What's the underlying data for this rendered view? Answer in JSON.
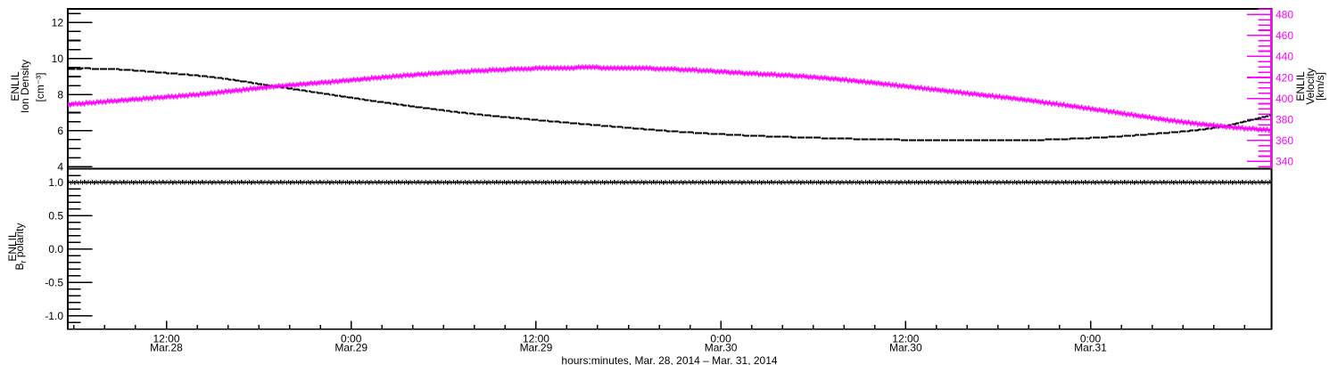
{
  "figure": {
    "background": "#ffffff",
    "black": "#000000",
    "accent_magenta": "#ff00ff",
    "xaxis_title": "hours:minutes, Mar. 28, 2014 – Mar. 31, 2014",
    "top_panel": {
      "left_axis_title_lines": [
        "ENLIL",
        "Ion Density",
        "[cm⁻³]"
      ],
      "left_tick_labels": [
        "12",
        "10",
        "8",
        "6",
        "4"
      ],
      "right_axis_title_lines": [
        "ENLIL",
        "Velocity",
        "[km/s]"
      ],
      "right_tick_labels": [
        "480",
        "460",
        "440",
        "420",
        "400",
        "380",
        "360",
        "340"
      ]
    },
    "bottom_panel": {
      "left_axis_title": {
        "base": "ENLIL",
        "sym": "B",
        "sub": "r",
        "rest": " polarity"
      },
      "left_tick_labels": [
        "1.0",
        "0.5",
        "0.0",
        "-0.5",
        "-1.0"
      ]
    },
    "x_tick_labels": [
      {
        "time": "12:00",
        "date": "Mar.28"
      },
      {
        "time": "0:00",
        "date": "Mar.29"
      },
      {
        "time": "12:00",
        "date": "Mar.29"
      },
      {
        "time": "0:00",
        "date": "Mar.30"
      },
      {
        "time": "12:00",
        "date": "Mar.30"
      },
      {
        "time": "0:00",
        "date": "Mar.31"
      }
    ]
  },
  "chart_data": [
    {
      "type": "line",
      "title": "",
      "xlabel": "hours:minutes, Mar. 28, 2014 – Mar. 31, 2014",
      "x_unit": "hours since Mar. 28, 2014 00:00 UT",
      "xlim": [
        5.54,
        83.76
      ],
      "x_major_ticks": [
        12,
        24,
        36,
        48,
        60,
        72
      ],
      "x_minor_step": 2,
      "grid": false,
      "legend": "none",
      "series": [
        {
          "name": "ENLIL Ion Density",
          "ylabel": "ENLIL Ion Density [cm-3]",
          "axis": "left",
          "color": "#000000",
          "marker": "dot",
          "ylim": [
            3.88,
            12.76
          ],
          "yticks": [
            4,
            6,
            8,
            10,
            12
          ],
          "y_minor_step": 0.5,
          "points": [
            [
              5.54,
              9.44
            ],
            [
              6.7,
              9.47
            ],
            [
              8.73,
              9.43
            ],
            [
              11.62,
              9.25
            ],
            [
              15.1,
              8.98
            ],
            [
              18.69,
              8.53
            ],
            [
              22.05,
              8.1
            ],
            [
              26.68,
              7.52
            ],
            [
              31.31,
              7.01
            ],
            [
              35.95,
              6.62
            ],
            [
              40.58,
              6.28
            ],
            [
              44.63,
              6.0
            ],
            [
              49.27,
              5.77
            ],
            [
              53.9,
              5.63
            ],
            [
              58.53,
              5.53
            ],
            [
              62.59,
              5.49
            ],
            [
              66.06,
              5.48
            ],
            [
              69.54,
              5.53
            ],
            [
              73.59,
              5.69
            ],
            [
              77.07,
              5.91
            ],
            [
              78.8,
              6.04
            ],
            [
              80.66,
              6.26
            ],
            [
              81.99,
              6.52
            ],
            [
              82.97,
              6.72
            ],
            [
              83.76,
              6.88
            ]
          ]
        },
        {
          "name": "ENLIL Velocity",
          "ylabel": "ENLIL Velocity [km/s]",
          "axis": "right",
          "color": "#ff00ff",
          "marker": "plus",
          "ylim": [
            333.0,
            485.4
          ],
          "yticks": [
            340,
            360,
            380,
            400,
            420,
            440,
            460,
            480
          ],
          "y_minor_step": 5,
          "points": [
            [
              5.54,
              394.5
            ],
            [
              9.89,
              399.5
            ],
            [
              14.23,
              404.5
            ],
            [
              18.69,
              411.3
            ],
            [
              22.92,
              416.5
            ],
            [
              27.26,
              422.0
            ],
            [
              31.31,
              426.0
            ],
            [
              35.37,
              428.7
            ],
            [
              39.13,
              429.8
            ],
            [
              42.9,
              429.2
            ],
            [
              46.37,
              427.3
            ],
            [
              49.85,
              424.3
            ],
            [
              53.32,
              421.5
            ],
            [
              56.8,
              417.0
            ],
            [
              60.27,
              411.5
            ],
            [
              63.75,
              405.8
            ],
            [
              67.22,
              400.0
            ],
            [
              70.7,
              393.3
            ],
            [
              74.17,
              386.0
            ],
            [
              77.07,
              379.8
            ],
            [
              79.38,
              375.6
            ],
            [
              81.7,
              372.4
            ],
            [
              83.76,
              370.2
            ]
          ]
        }
      ]
    },
    {
      "type": "line",
      "title": "",
      "xlim": [
        5.54,
        83.76
      ],
      "grid": false,
      "legend": "none",
      "series": [
        {
          "name": "ENLIL Br polarity",
          "ylabel": "ENLIL Br polarity",
          "axis": "left",
          "color": "#000000",
          "marker": "plus",
          "ylim": [
            -1.2,
            1.2
          ],
          "yticks": [
            1.0,
            0.5,
            0.0,
            -0.5,
            -1.0
          ],
          "y_minor_step": 0.1,
          "points": [
            [
              5.54,
              1.0
            ],
            [
              83.76,
              1.0
            ]
          ]
        }
      ]
    }
  ]
}
